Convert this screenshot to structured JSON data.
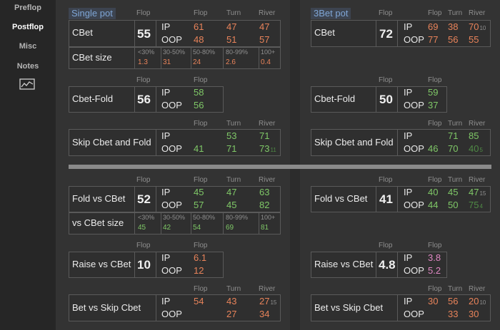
{
  "nav": {
    "preflop": "Preflop",
    "postflop": "Postflop",
    "misc": "Misc",
    "notes": "Notes",
    "chart_icon": "line-chart-icon"
  },
  "headers": {
    "flop": "Flop",
    "turn": "Turn",
    "river": "River"
  },
  "pos": {
    "ip": "IP",
    "oop": "OOP"
  },
  "colors": {
    "red": "#e8835a",
    "green": "#7fc867",
    "pink": "#e088c4",
    "dark_green": "#4f8a45"
  },
  "single": {
    "title": "Single pot",
    "cbet": {
      "label": "CBet",
      "big": "55",
      "ip": [
        "61",
        "47",
        "47"
      ],
      "oop": [
        "48",
        "51",
        "57"
      ]
    },
    "cbet_size": {
      "label": "CBet size",
      "cats": [
        "<30%",
        "30-50%",
        "50-80%",
        "80-99%",
        "100+"
      ],
      "vals": [
        "1.3",
        "31",
        "24",
        "2.6",
        "0.4"
      ]
    },
    "cbet_fold": {
      "label": "Cbet-Fold",
      "big": "56",
      "ip": "58",
      "oop": "56"
    },
    "skip": {
      "label": "Skip Cbet and Fold",
      "ip": [
        "53",
        "71"
      ],
      "oop": [
        "41",
        "71",
        "73"
      ],
      "oop_sub": "11"
    },
    "fold_vs": {
      "label": "Fold vs CBet",
      "big": "52",
      "ip": [
        "45",
        "47",
        "63"
      ],
      "oop": [
        "57",
        "45",
        "82"
      ]
    },
    "vs_size": {
      "label": "vs CBet size",
      "cats": [
        "<30%",
        "30-50%",
        "50-80%",
        "80-99%",
        "100+"
      ],
      "vals": [
        "45",
        "42",
        "54",
        "69",
        "81"
      ]
    },
    "raise": {
      "label": "Raise vs CBet",
      "big": "10",
      "ip": "6.1",
      "oop": "12"
    },
    "bet_skip": {
      "label": "Bet vs Skip Cbet",
      "ip": [
        "54",
        "43",
        "27"
      ],
      "ip_sub": "15",
      "oop": [
        "27",
        "34"
      ]
    }
  },
  "threebet": {
    "title": "3Bet pot",
    "cbet": {
      "label": "CBet",
      "big": "72",
      "ip": [
        "69",
        "38",
        "70"
      ],
      "ip_sub": "10",
      "oop": [
        "77",
        "56",
        "55"
      ]
    },
    "cbet_fold": {
      "label": "Cbet-Fold",
      "big": "50",
      "ip": "59",
      "oop": "37"
    },
    "skip": {
      "label": "Skip Cbet and Fold",
      "ip": [
        "71",
        "85"
      ],
      "oop": [
        "46",
        "70",
        "40"
      ],
      "oop_sub": "5"
    },
    "fold_vs": {
      "label": "Fold vs CBet",
      "big": "41",
      "ip": [
        "40",
        "45",
        "47"
      ],
      "ip_sub": "15",
      "oop": [
        "44",
        "50",
        "75"
      ],
      "oop_sub": "4"
    },
    "raise": {
      "label": "Raise vs CBet",
      "big": "4.8",
      "ip": "3.8",
      "oop": "5.2"
    },
    "bet_skip": {
      "label": "Bet vs Skip Cbet",
      "ip": [
        "30",
        "56",
        "20"
      ],
      "ip_sub": "10",
      "oop": [
        "33",
        "30"
      ]
    }
  }
}
